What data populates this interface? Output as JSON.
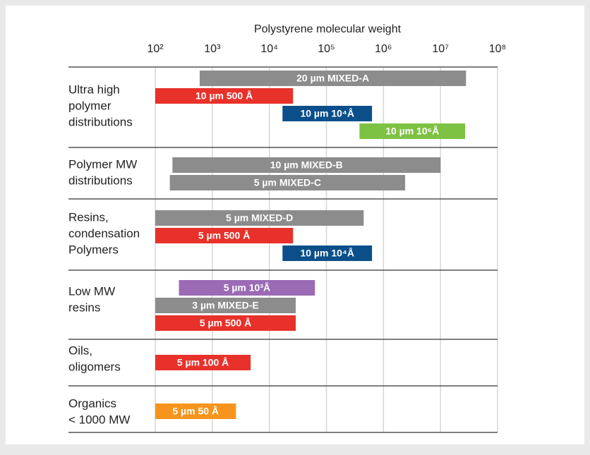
{
  "chart_data": {
    "type": "range-bar",
    "xlabel": "Polystyrene molecular weight",
    "log_x": true,
    "xlim": [
      100,
      100000000
    ],
    "xticks": [
      {
        "value": 100,
        "label": "10²"
      },
      {
        "value": 1000,
        "label": "10³"
      },
      {
        "value": 10000,
        "label": "10⁴"
      },
      {
        "value": 100000,
        "label": "10⁵"
      },
      {
        "value": 1000000,
        "label": "10⁶"
      },
      {
        "value": 10000000,
        "label": "10⁷"
      },
      {
        "value": 100000000,
        "label": "10⁸"
      }
    ],
    "grid": true,
    "groups": [
      {
        "label": [
          "Ultra high",
          "polymer",
          "distributions"
        ],
        "bars": [
          {
            "name": "20 µm MIXED-A",
            "color": "#8c8c8c",
            "range": [
              600,
              28000000
            ]
          },
          {
            "name": "10 µm 500 Å",
            "color": "#e8312a",
            "range": [
              100,
              26000
            ]
          },
          {
            "name": "10 µm 10⁴Å",
            "color": "#0b4f8a",
            "range": [
              17000,
              630000
            ]
          },
          {
            "name": "10 µm 10⁶Å",
            "color": "#7dc242",
            "range": [
              380000,
              27000000
            ]
          }
        ]
      },
      {
        "label": [
          "Polymer MW",
          "distributions"
        ],
        "bars": [
          {
            "name": "10 µm MIXED-B",
            "color": "#8c8c8c",
            "range": [
              200,
              10000000
            ]
          },
          {
            "name": "5 µm MIXED-C",
            "color": "#8c8c8c",
            "range": [
              180,
              2400000
            ]
          }
        ]
      },
      {
        "label": [
          "Resins,",
          "condensation",
          "Polymers"
        ],
        "bars": [
          {
            "name": "5 µm MIXED-D",
            "color": "#8c8c8c",
            "range": [
              100,
              450000
            ]
          },
          {
            "name": "5 µm 500 Å",
            "color": "#e8312a",
            "range": [
              100,
              26000
            ]
          },
          {
            "name": "10 µm 10⁴Å",
            "color": "#0b4f8a",
            "range": [
              17000,
              630000
            ]
          }
        ]
      },
      {
        "label": [
          "Low MW",
          "resins"
        ],
        "bars": [
          {
            "name": "5 µm 10³Å",
            "color": "#9b6bb5",
            "range": [
              260,
              63000
            ]
          },
          {
            "name": "3 µm MIXED-E",
            "color": "#8c8c8c",
            "range": [
              100,
              29000
            ]
          },
          {
            "name": "5 µm 500 Å",
            "color": "#e8312a",
            "range": [
              100,
              29000
            ]
          }
        ]
      },
      {
        "label": [
          "Oils,",
          "oligomers"
        ],
        "bars": [
          {
            "name": "5 µm 100 Å",
            "color": "#e8312a",
            "range": [
              100,
              4700
            ]
          }
        ]
      },
      {
        "label": [
          "Organics",
          "< 1000 MW"
        ],
        "bars": [
          {
            "name": "5 µm 50 Å",
            "color": "#f7941d",
            "range": [
              100,
              2600
            ]
          }
        ]
      }
    ]
  }
}
